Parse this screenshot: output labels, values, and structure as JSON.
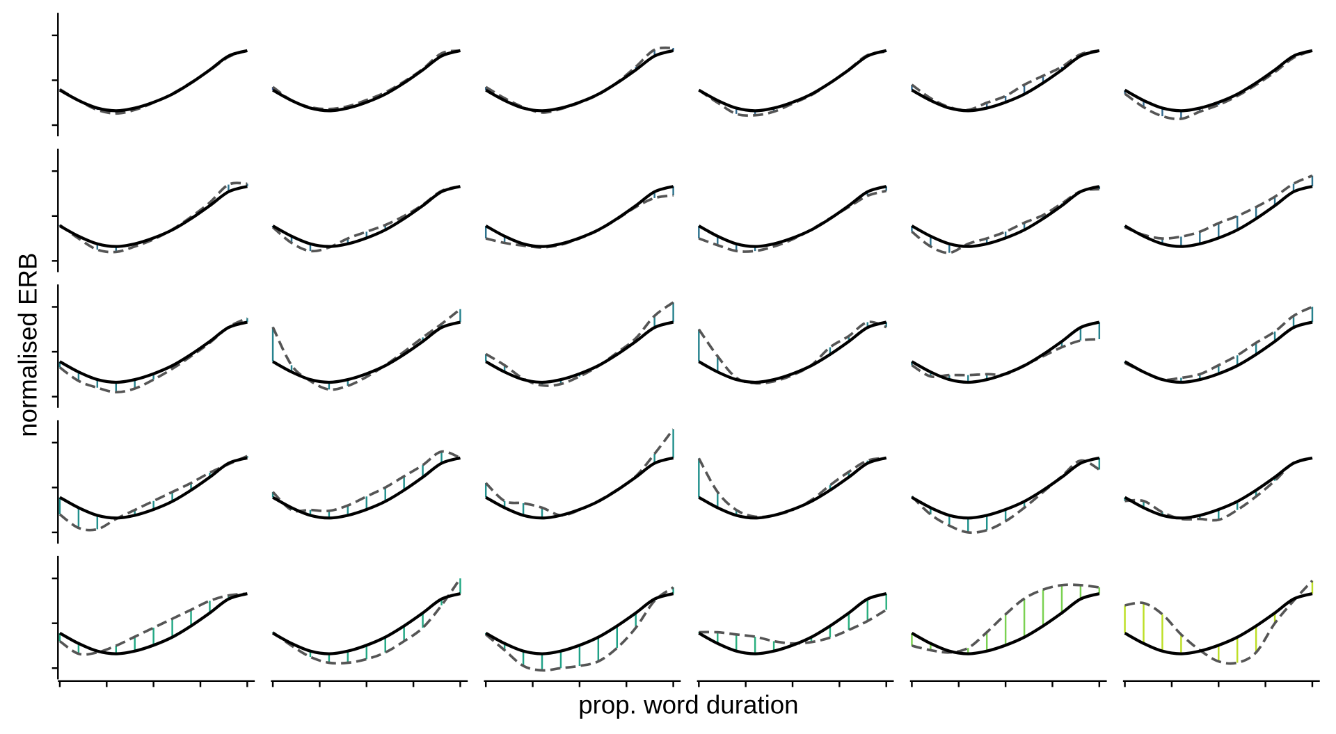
{
  "chart_data": {
    "type": "line",
    "x_label": "prop. word duration",
    "y_label": "normalised ERB",
    "x": [
      0,
      0.1,
      0.2,
      0.3,
      0.4,
      0.5,
      0.6,
      0.7,
      0.8,
      0.9,
      1
    ],
    "xlim": [
      -0.01,
      1.04
    ],
    "xticks": [
      0,
      0.25,
      0.5,
      0.75,
      1
    ],
    "ylim": [
      -1.25,
      1.5
    ],
    "yticks": [
      -1,
      0,
      1
    ],
    "reference": {
      "color": "#000000",
      "values": [
        -0.22,
        -0.45,
        -0.62,
        -0.68,
        -0.62,
        -0.49,
        -0.31,
        -0.06,
        0.23,
        0.54,
        0.66
      ]
    },
    "dashed_color": "#555555",
    "panels": [
      {
        "color": "#3b528b",
        "values": [
          -0.2,
          -0.45,
          -0.66,
          -0.74,
          -0.66,
          -0.5,
          -0.3,
          -0.05,
          0.22,
          0.52,
          0.66
        ]
      },
      {
        "color": "#3b528b",
        "values": [
          -0.15,
          -0.45,
          -0.6,
          -0.64,
          -0.58,
          -0.44,
          -0.27,
          -0.03,
          0.25,
          0.6,
          0.66
        ]
      },
      {
        "color": "#31688e",
        "values": [
          -0.15,
          -0.4,
          -0.6,
          -0.72,
          -0.64,
          -0.5,
          -0.32,
          -0.05,
          0.3,
          0.68,
          0.72
        ]
      },
      {
        "color": "#31688e",
        "values": [
          -0.22,
          -0.5,
          -0.75,
          -0.78,
          -0.7,
          -0.52,
          -0.33,
          -0.06,
          0.24,
          0.56,
          0.64
        ]
      },
      {
        "color": "#31688e",
        "values": [
          -0.1,
          -0.4,
          -0.6,
          -0.66,
          -0.5,
          -0.35,
          -0.1,
          0.1,
          0.3,
          0.58,
          0.66
        ]
      },
      {
        "color": "#31688e",
        "values": [
          -0.3,
          -0.6,
          -0.8,
          -0.86,
          -0.7,
          -0.55,
          -0.35,
          -0.1,
          0.18,
          0.5,
          0.66
        ]
      },
      {
        "color": "#2c728e",
        "values": [
          -0.2,
          -0.5,
          -0.75,
          -0.8,
          -0.68,
          -0.52,
          -0.3,
          -0.02,
          0.3,
          0.7,
          0.72
        ]
      },
      {
        "color": "#2c728e",
        "values": [
          -0.25,
          -0.6,
          -0.78,
          -0.7,
          -0.5,
          -0.35,
          -0.2,
          0,
          0.25,
          0.56,
          0.66
        ]
      },
      {
        "color": "#2c728e",
        "values": [
          -0.5,
          -0.6,
          -0.66,
          -0.7,
          -0.64,
          -0.5,
          -0.32,
          -0.07,
          0.2,
          0.4,
          0.46
        ]
      },
      {
        "color": "#2c728e",
        "values": [
          -0.5,
          -0.65,
          -0.78,
          -0.78,
          -0.68,
          -0.52,
          -0.3,
          -0.05,
          0.2,
          0.45,
          0.56
        ]
      },
      {
        "color": "#2c728e",
        "values": [
          -0.35,
          -0.68,
          -0.82,
          -0.62,
          -0.5,
          -0.35,
          -0.15,
          0.02,
          0.28,
          0.55,
          0.6
        ]
      },
      {
        "color": "#2c728e",
        "values": [
          -0.25,
          -0.42,
          -0.5,
          -0.46,
          -0.35,
          -0.16,
          0,
          0.2,
          0.43,
          0.72,
          0.9
        ]
      },
      {
        "color": "#26828e",
        "values": [
          -0.35,
          -0.65,
          -0.8,
          -0.9,
          -0.82,
          -0.62,
          -0.38,
          -0.1,
          0.2,
          0.55,
          0.75
        ]
      },
      {
        "color": "#26828e",
        "values": [
          0.55,
          -0.3,
          -0.65,
          -0.84,
          -0.76,
          -0.56,
          -0.3,
          0,
          0.32,
          0.62,
          0.95
        ]
      },
      {
        "color": "#26828e",
        "values": [
          -0.05,
          -0.3,
          -0.6,
          -0.75,
          -0.72,
          -0.55,
          -0.32,
          -0.02,
          0.3,
          0.8,
          1.1
        ]
      },
      {
        "color": "#26828e",
        "values": [
          0.5,
          -0.1,
          -0.58,
          -0.7,
          -0.66,
          -0.52,
          -0.3,
          0.1,
          0.35,
          0.66,
          0.55
        ]
      },
      {
        "color": "#26828e",
        "values": [
          -0.3,
          -0.55,
          -0.52,
          -0.52,
          -0.5,
          -0.5,
          -0.3,
          -0.1,
          0.1,
          0.25,
          0.28
        ]
      },
      {
        "color": "#26828e",
        "values": [
          -0.25,
          -0.45,
          -0.62,
          -0.58,
          -0.5,
          -0.3,
          -0.08,
          0.2,
          0.45,
          0.8,
          1.0
        ]
      },
      {
        "color": "#21908d",
        "values": [
          -0.6,
          -0.9,
          -0.93,
          -0.7,
          -0.5,
          -0.3,
          -0.1,
          0.1,
          0.33,
          0.52,
          0.7
        ]
      },
      {
        "color": "#21908d",
        "values": [
          -0.1,
          -0.5,
          -0.5,
          -0.52,
          -0.4,
          -0.2,
          0,
          0.25,
          0.5,
          0.8,
          0.66
        ]
      },
      {
        "color": "#21908d",
        "values": [
          0.1,
          -0.3,
          -0.35,
          -0.45,
          -0.62,
          -0.5,
          -0.3,
          -0.05,
          0.25,
          0.75,
          1.3
        ]
      },
      {
        "color": "#21908d",
        "values": [
          0.65,
          -0.1,
          -0.5,
          -0.65,
          -0.62,
          -0.5,
          -0.28,
          0.05,
          0.35,
          0.6,
          0.66
        ]
      },
      {
        "color": "#20928c",
        "values": [
          -0.2,
          -0.6,
          -0.85,
          -1.0,
          -0.95,
          -0.75,
          -0.45,
          -0.1,
          0.25,
          0.6,
          0.4
        ]
      },
      {
        "color": "#21908d",
        "values": [
          -0.3,
          -0.3,
          -0.55,
          -0.7,
          -0.7,
          -0.72,
          -0.5,
          -0.2,
          0.15,
          0.55,
          0.66
        ]
      },
      {
        "color": "#22a884",
        "values": [
          -0.4,
          -0.68,
          -0.65,
          -0.5,
          -0.3,
          -0.1,
          0.1,
          0.3,
          0.5,
          0.62,
          0.66
        ]
      },
      {
        "color": "#22a884",
        "values": [
          -0.2,
          -0.5,
          -0.75,
          -0.88,
          -0.88,
          -0.8,
          -0.65,
          -0.4,
          -0.1,
          0.4,
          1.0
        ]
      },
      {
        "color": "#1fa187",
        "values": [
          -0.25,
          -0.6,
          -0.95,
          -1.05,
          -1.0,
          -0.95,
          -0.85,
          -0.55,
          -0.1,
          0.5,
          0.8
        ]
      },
      {
        "color": "#29af7f",
        "values": [
          -0.2,
          -0.2,
          -0.25,
          -0.3,
          -0.4,
          -0.45,
          -0.42,
          -0.32,
          -0.15,
          0.05,
          0.3
        ]
      },
      {
        "color": "#7ad151",
        "values": [
          -0.5,
          -0.6,
          -0.65,
          -0.55,
          -0.2,
          0.2,
          0.55,
          0.75,
          0.85,
          0.85,
          0.8
        ]
      },
      {
        "color": "#bddf26",
        "values": [
          0.4,
          0.45,
          0.2,
          -0.25,
          -0.6,
          -0.85,
          -0.88,
          -0.65,
          0.0,
          0.5,
          0.95
        ]
      }
    ]
  }
}
